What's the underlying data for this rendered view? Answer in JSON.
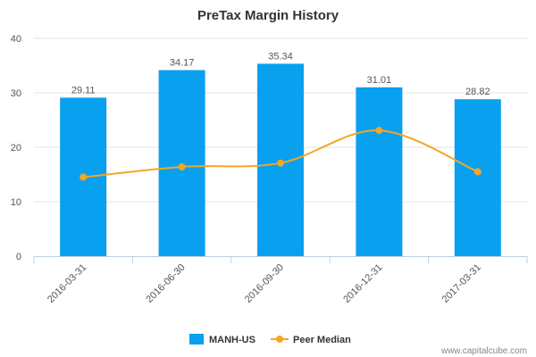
{
  "chart_data": {
    "type": "bar",
    "title": "PreTax Margin History",
    "categories": [
      "2016-03-31",
      "2016-06-30",
      "2016-09-30",
      "2016-12-31",
      "2017-03-31"
    ],
    "series": [
      {
        "name": "MANH-US",
        "type": "bar",
        "values": [
          29.11,
          34.17,
          35.34,
          31.01,
          28.82
        ],
        "labels": [
          "29.11",
          "34.17",
          "35.34",
          "31.01",
          "28.82"
        ],
        "color": "#0aa0f0"
      },
      {
        "name": "Peer Median",
        "type": "line",
        "values": [
          14.5,
          16.4,
          17.1,
          23.1,
          15.5
        ],
        "color": "#f5a623"
      }
    ],
    "yticks": [
      "0",
      "10",
      "20",
      "30",
      "40"
    ],
    "ylim": [
      0,
      40
    ],
    "grid": true,
    "legend_position": "bottom"
  },
  "credit": "www.capitalcube.com"
}
